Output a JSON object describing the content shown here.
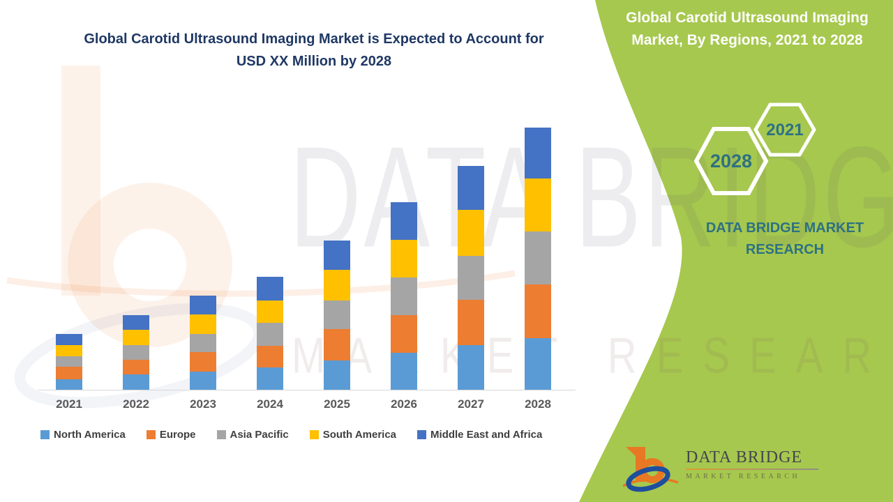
{
  "canvas": {
    "background": "#ffffff",
    "accent_green": "#a6c84e",
    "title_color": "#1f3864",
    "teal_color": "#2d7183"
  },
  "main_title": {
    "line1": "Global Carotid Ultrasound Imaging Market is Expected to Account for",
    "line2": "USD XX Million by 2028"
  },
  "side_panel": {
    "title_line1": "Global Carotid Ultrasound Imaging",
    "title_line2": "Market, By Regions, 2021 to 2028",
    "hexagon_back_label": "2028",
    "hexagon_front_label": "2021",
    "brand_line1": "DATA BRIDGE MARKET",
    "brand_line2": "RESEARCH"
  },
  "watermark": {
    "line1": "DATA BRIDGE",
    "line2": "MARKET RESEARCH"
  },
  "footer_logo": {
    "brand": "DATA BRIDGE",
    "tagline": "MARKET RESEARCH"
  },
  "chart_data": {
    "type": "bar",
    "stacked": true,
    "title": "Global Carotid Ultrasound Imaging Market is Expected to Account for USD XX Million by 2028",
    "xlabel": "",
    "ylabel": "",
    "y_axis_shown": false,
    "value_unit": "relative units (actual values masked as USD XX Million)",
    "grid": false,
    "legend_position": "bottom",
    "axis_line_color": "#d8d8d8",
    "categories": [
      "2021",
      "2022",
      "2023",
      "2024",
      "2025",
      "2026",
      "2027",
      "2028"
    ],
    "series": [
      {
        "name": "North America",
        "color": "#5B9BD5",
        "values": [
          15,
          22,
          26,
          32,
          42,
          53,
          64,
          74
        ]
      },
      {
        "name": "Europe",
        "color": "#ED7D31",
        "values": [
          18,
          21,
          28,
          31,
          45,
          54,
          65,
          77
        ]
      },
      {
        "name": "Asia Pacific",
        "color": "#A5A5A5",
        "values": [
          15,
          21,
          26,
          33,
          41,
          54,
          63,
          76
        ]
      },
      {
        "name": "South America",
        "color": "#FFC000",
        "values": [
          16,
          22,
          28,
          32,
          44,
          54,
          66,
          76
        ]
      },
      {
        "name": "Middle East and Africa",
        "color": "#4472C4",
        "values": [
          16,
          21,
          27,
          34,
          42,
          54,
          63,
          73
        ]
      }
    ],
    "stack_totals": [
      80,
      107,
      135,
      162,
      214,
      269,
      321,
      376
    ]
  }
}
